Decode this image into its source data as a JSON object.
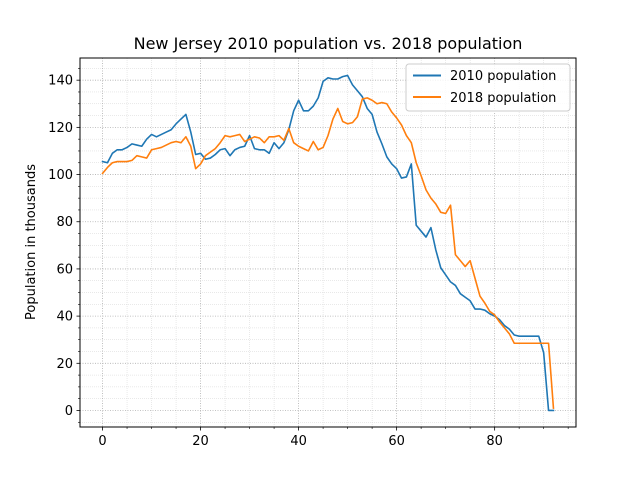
{
  "chart_data": {
    "type": "line",
    "title": "New Jersey 2010 population vs. 2018 population",
    "xlabel": "",
    "ylabel": "Population in thousands",
    "xlim": [
      -4.6,
      96.6
    ],
    "ylim": [
      -7,
      149.4
    ],
    "xticks": [
      0,
      20,
      40,
      60,
      80
    ],
    "yticks": [
      0,
      20,
      40,
      60,
      80,
      100,
      120,
      140
    ],
    "grid": true,
    "legend": "top-right",
    "series": [
      {
        "name": "2010 population",
        "color": "#1f77b4",
        "x": [
          0,
          1,
          2,
          3,
          4,
          5,
          6,
          7,
          8,
          9,
          10,
          11,
          12,
          13,
          14,
          15,
          16,
          17,
          18,
          19,
          20,
          21,
          22,
          23,
          24,
          25,
          26,
          27,
          28,
          29,
          30,
          31,
          32,
          33,
          34,
          35,
          36,
          37,
          38,
          39,
          40,
          41,
          42,
          43,
          44,
          45,
          46,
          47,
          48,
          49,
          50,
          51,
          52,
          53,
          54,
          55,
          56,
          57,
          58,
          59,
          60,
          61,
          62,
          63,
          64,
          65,
          66,
          67,
          68,
          69,
          70,
          71,
          72,
          73,
          74,
          75,
          76,
          77,
          78,
          79,
          80,
          81,
          82,
          83,
          84,
          85,
          86,
          87,
          88,
          89,
          90,
          91,
          92
        ],
        "values": [
          105.5,
          105,
          109,
          110.5,
          110.5,
          111.5,
          113,
          112.5,
          112,
          115,
          117,
          116,
          117,
          118,
          119,
          121.5,
          123.5,
          125.5,
          118,
          108.5,
          109,
          106.5,
          107,
          108.5,
          110.5,
          111,
          108,
          110.5,
          111.5,
          112,
          116.5,
          111,
          110.5,
          110.5,
          109,
          113.5,
          111,
          113.5,
          119,
          127,
          131.5,
          127,
          127,
          129,
          132.5,
          139.5,
          141,
          140.5,
          140.5,
          141.5,
          142,
          138,
          135.5,
          133,
          128,
          125.5,
          118,
          113,
          107.5,
          104.5,
          102.5,
          98.5,
          99,
          104.5,
          78.5,
          76,
          73.5,
          77.5,
          68,
          60.5,
          57.5,
          54.5,
          53,
          49.5,
          48,
          46.5,
          43,
          43,
          42.5,
          41,
          40,
          38.5,
          36,
          34.5,
          32,
          31.5,
          31.5,
          31.5,
          31.5,
          31.5,
          24.5,
          0,
          0
        ]
      },
      {
        "name": "2018 population",
        "color": "#ff7f0e",
        "x": [
          0,
          1,
          2,
          3,
          4,
          5,
          6,
          7,
          8,
          9,
          10,
          11,
          12,
          13,
          14,
          15,
          16,
          17,
          18,
          19,
          20,
          21,
          22,
          23,
          24,
          25,
          26,
          27,
          28,
          29,
          30,
          31,
          32,
          33,
          34,
          35,
          36,
          37,
          38,
          39,
          40,
          41,
          42,
          43,
          44,
          45,
          46,
          47,
          48,
          49,
          50,
          51,
          52,
          53,
          54,
          55,
          56,
          57,
          58,
          59,
          60,
          61,
          62,
          63,
          64,
          65,
          66,
          67,
          68,
          69,
          70,
          71,
          72,
          73,
          74,
          75,
          76,
          77,
          78,
          79,
          80,
          81,
          82,
          83,
          84,
          85,
          86,
          87,
          88,
          89,
          90,
          91,
          92
        ],
        "values": [
          100.5,
          103,
          105,
          105.5,
          105.5,
          105.5,
          106,
          108,
          107.5,
          107,
          110.5,
          111,
          111.5,
          112.5,
          113.5,
          114,
          113.5,
          116,
          112,
          102.5,
          104.5,
          108,
          109.5,
          111,
          113.5,
          116.5,
          116,
          116.5,
          117,
          114,
          115,
          116,
          115.5,
          113.5,
          116,
          116,
          116.5,
          114.5,
          119.5,
          113.5,
          112,
          111,
          110,
          114,
          110.5,
          111.5,
          116.5,
          123.5,
          128,
          122.5,
          121.5,
          122,
          124.5,
          132,
          132.5,
          131.5,
          130,
          130.5,
          130,
          126.5,
          124,
          121,
          116.5,
          113.5,
          105,
          99.5,
          93.5,
          90,
          87.5,
          84,
          83.5,
          87,
          66,
          63.5,
          61,
          63.5,
          56,
          48.5,
          45.5,
          42,
          40.5,
          37.5,
          35,
          32.5,
          28.5,
          28.5,
          28.5,
          28.5,
          28.5,
          28.5,
          28.5,
          28.5,
          1
        ]
      }
    ]
  }
}
